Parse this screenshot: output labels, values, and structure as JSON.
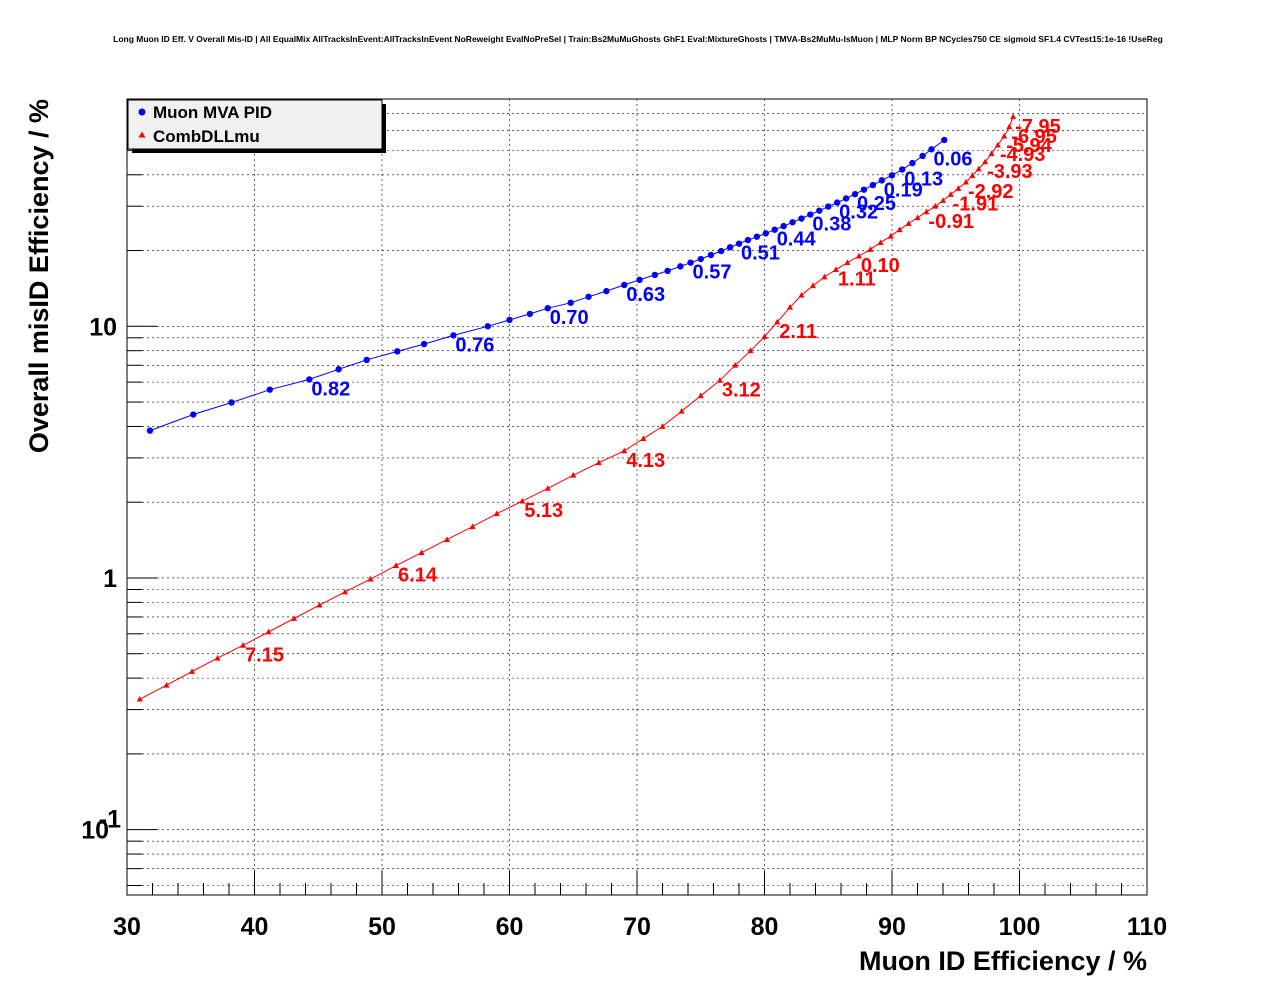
{
  "chart_data": {
    "type": "scatter",
    "title": "Long Muon ID Eff. V Overall Mis-ID | All EqualMix AllTracksInEvent:AllTracksInEvent NoReweight EvalNoPreSel | Train:Bs2MuMuGhosts GhF1 Eval:MixtureGhosts | TMVA-Bs2MuMu-IsMuon | MLP Norm BP NCycles750 CE sigmoid SF1.4 CVTest15:1e-16 !UseReg",
    "xlabel": "Muon ID Efficiency / %",
    "ylabel": "Overall misID Efficiency / %",
    "xlim": [
      30,
      110
    ],
    "ylim": [
      0.055,
      80
    ],
    "y_scale": "log",
    "grid": true,
    "legend_position": "top-left",
    "x_tick_labels": [
      "30",
      "40",
      "50",
      "60",
      "70",
      "80",
      "90",
      "100",
      "110"
    ],
    "y_tick_labels": [
      {
        "value": 0.1,
        "base": "10",
        "exp": "-1"
      },
      {
        "value": 1,
        "base": "1",
        "exp": ""
      },
      {
        "value": 10,
        "base": "10",
        "exp": ""
      }
    ],
    "series": [
      {
        "name": "Muon MVA PID",
        "color": "#0000ff",
        "marker": "circle",
        "x": [
          31.8,
          35.2,
          38.2,
          41.2,
          44.3,
          46.6,
          48.8,
          51.2,
          53.3,
          55.6,
          58.3,
          60.0,
          61.6,
          63.0,
          64.8,
          66.2,
          67.6,
          69.0,
          70.2,
          71.4,
          72.4,
          73.4,
          74.2,
          75.0,
          75.8,
          76.6,
          77.3,
          78.0,
          78.7,
          79.4,
          80.1,
          80.8,
          81.5,
          82.2,
          82.9,
          83.6,
          84.3,
          85.0,
          85.7,
          86.4,
          87.1,
          87.8,
          88.5,
          89.2,
          90.0,
          90.8,
          91.6,
          92.4,
          93.1,
          94.1
        ],
        "y": [
          3.85,
          4.46,
          4.98,
          5.6,
          6.15,
          6.75,
          7.35,
          7.95,
          8.5,
          9.2,
          10.0,
          10.6,
          11.2,
          11.8,
          12.4,
          13.1,
          13.8,
          14.6,
          15.3,
          16.0,
          16.6,
          17.3,
          17.9,
          18.5,
          19.2,
          19.9,
          20.6,
          21.3,
          22.0,
          22.7,
          23.4,
          24.2,
          25.0,
          25.9,
          26.8,
          27.8,
          28.8,
          29.9,
          31.0,
          32.2,
          33.5,
          34.9,
          36.4,
          38.0,
          39.8,
          42.0,
          44.5,
          47.5,
          50.5,
          55.0
        ],
        "labels": [
          {
            "text": "0.82",
            "x": 44.3,
            "y": 6.15
          },
          {
            "text": "0.76",
            "x": 55.6,
            "y": 9.2
          },
          {
            "text": "0.70",
            "x": 63.0,
            "y": 11.8
          },
          {
            "text": "0.63",
            "x": 69.0,
            "y": 14.6
          },
          {
            "text": "0.57",
            "x": 74.2,
            "y": 17.9
          },
          {
            "text": "0.51",
            "x": 78.0,
            "y": 21.3
          },
          {
            "text": "0.44",
            "x": 80.8,
            "y": 24.2
          },
          {
            "text": "0.38",
            "x": 83.6,
            "y": 27.8
          },
          {
            "text": "0.32",
            "x": 85.7,
            "y": 31.0
          },
          {
            "text": "0.25",
            "x": 87.1,
            "y": 33.5
          },
          {
            "text": "0.19",
            "x": 89.2,
            "y": 38.0
          },
          {
            "text": "0.13",
            "x": 90.8,
            "y": 42.0
          },
          {
            "text": "0.06",
            "x": 93.1,
            "y": 50.5
          }
        ]
      },
      {
        "name": "CombDLLmu",
        "color": "#ff0000",
        "marker": "triangle",
        "x": [
          31.0,
          33.1,
          35.1,
          37.1,
          39.1,
          41.1,
          43.1,
          45.1,
          47.1,
          49.1,
          51.1,
          53.1,
          55.1,
          57.1,
          59.0,
          61.0,
          63.0,
          65.0,
          67.0,
          69.0,
          70.5,
          72.0,
          73.5,
          75.0,
          76.5,
          77.7,
          78.9,
          80.0,
          81.0,
          82.0,
          82.9,
          83.8,
          84.7,
          85.6,
          86.5,
          87.4,
          88.3,
          89.1,
          89.9,
          90.6,
          91.3,
          92.0,
          92.7,
          93.4,
          94.0,
          94.6,
          95.2,
          95.8,
          96.3,
          96.8,
          97.3,
          97.8,
          98.3,
          98.8,
          99.2,
          99.5
        ],
        "y": [
          0.33,
          0.375,
          0.425,
          0.48,
          0.54,
          0.61,
          0.69,
          0.78,
          0.88,
          0.99,
          1.12,
          1.26,
          1.42,
          1.6,
          1.8,
          2.02,
          2.27,
          2.56,
          2.87,
          3.2,
          3.58,
          4.0,
          4.6,
          5.3,
          6.1,
          7.0,
          8.0,
          9.1,
          10.4,
          11.9,
          13.3,
          14.5,
          15.7,
          16.8,
          17.9,
          19.0,
          20.2,
          21.5,
          22.8,
          24.2,
          25.6,
          27.0,
          28.5,
          30.0,
          31.6,
          33.4,
          35.3,
          37.4,
          39.7,
          42.2,
          45.0,
          48.5,
          52.5,
          57.0,
          62.0,
          68.0
        ],
        "labels": [
          {
            "text": "7.15",
            "x": 39.1,
            "y": 0.54
          },
          {
            "text": "6.14",
            "x": 51.1,
            "y": 1.12
          },
          {
            "text": "5.13",
            "x": 61.0,
            "y": 2.02
          },
          {
            "text": "4.13",
            "x": 69.0,
            "y": 3.2
          },
          {
            "text": "3.12",
            "x": 76.5,
            "y": 6.1
          },
          {
            "text": "2.11",
            "x": 81.0,
            "y": 10.4
          },
          {
            "text": "1.11",
            "x": 85.6,
            "y": 16.8
          },
          {
            "text": "0.10",
            "x": 87.4,
            "y": 19.0
          },
          {
            "text": "-0.91",
            "x": 92.7,
            "y": 28.5
          },
          {
            "text": "-1.91",
            "x": 94.6,
            "y": 33.4
          },
          {
            "text": "-2.92",
            "x": 95.8,
            "y": 37.4
          },
          {
            "text": "-3.93",
            "x": 97.3,
            "y": 45.0
          },
          {
            "text": "-4.93",
            "x": 98.3,
            "y": 52.5
          },
          {
            "text": "-5.94",
            "x": 98.8,
            "y": 57.0
          },
          {
            "text": "-6.95",
            "x": 99.2,
            "y": 62.0
          },
          {
            "text": "-7.95",
            "x": 99.5,
            "y": 68.0
          }
        ]
      }
    ]
  }
}
